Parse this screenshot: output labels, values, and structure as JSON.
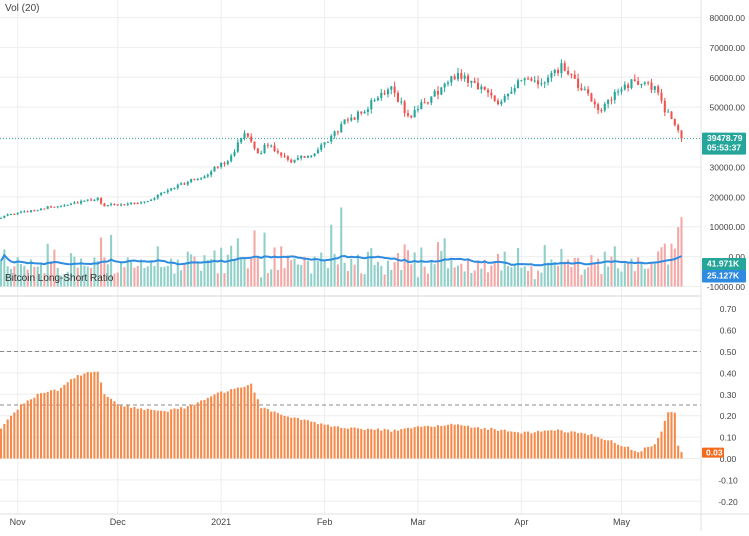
{
  "panes": {
    "price": {
      "volume_label": "Vol (20)",
      "y_ticks": [
        "80000.00",
        "70000.00",
        "60000.00",
        "50000.00",
        "40000.00",
        "30000.00",
        "20000.00",
        "10000.00",
        "0.00",
        "-10000.00"
      ],
      "last_price": "39478.79",
      "countdown": "05:53:37",
      "volume_value": "41.971K",
      "volume_ma_value": "25.127K"
    },
    "ratio": {
      "title": "Bitcoin Long-Short Ratio",
      "y_ticks": [
        "0.70",
        "0.60",
        "0.50",
        "0.40",
        "0.30",
        "0.20",
        "0.10",
        "0.00",
        "-0.10",
        "-0.20"
      ],
      "last_value": "0.03"
    }
  },
  "x_axis": {
    "labels": [
      "Nov",
      "Dec",
      "2021",
      "Feb",
      "Mar",
      "Apr",
      "May"
    ]
  },
  "colors": {
    "up": "#26a69a",
    "down": "#ef5350",
    "vol_up": "#8fd0c8",
    "vol_down": "#f4a8a6",
    "vol_ma": "#2f8be0",
    "ratio_bar": "#f68a4a",
    "axis_text": "#444444",
    "grid": "#eeeeee"
  },
  "chart_data": [
    {
      "type": "candlestick",
      "title": "",
      "x_range": [
        "2020-10-27",
        "2021-05-19"
      ],
      "ylim": [
        -10000,
        85000
      ],
      "price_anchors": [
        [
          "2020-10-27",
          13300
        ],
        [
          "2020-11-05",
          15500
        ],
        [
          "2020-11-17",
          17800
        ],
        [
          "2020-11-25",
          19200
        ],
        [
          "2020-11-27",
          17000
        ],
        [
          "2020-12-10",
          18500
        ],
        [
          "2020-12-17",
          23000
        ],
        [
          "2020-12-27",
          27000
        ],
        [
          "2021-01-03",
          32500
        ],
        [
          "2021-01-08",
          40800
        ],
        [
          "2021-01-12",
          34500
        ],
        [
          "2021-01-15",
          37500
        ],
        [
          "2021-01-22",
          32000
        ],
        [
          "2021-01-29",
          34200
        ],
        [
          "2021-02-08",
          46000
        ],
        [
          "2021-02-12",
          48000
        ],
        [
          "2021-02-21",
          57500
        ],
        [
          "2021-02-26",
          46500
        ],
        [
          "2021-03-01",
          49500
        ],
        [
          "2021-03-13",
          61200
        ],
        [
          "2021-03-18",
          58000
        ],
        [
          "2021-03-25",
          52000
        ],
        [
          "2021-04-01",
          58800
        ],
        [
          "2021-04-08",
          58000
        ],
        [
          "2021-04-13",
          63500
        ],
        [
          "2021-04-18",
          57000
        ],
        [
          "2021-04-25",
          49000
        ],
        [
          "2021-05-02",
          57500
        ],
        [
          "2021-05-08",
          58800
        ],
        [
          "2021-05-11",
          56000
        ],
        [
          "2021-05-14",
          49000
        ],
        [
          "2021-05-18",
          43000
        ],
        [
          "2021-05-19",
          39478.79
        ]
      ],
      "last_price": 39478.79
    },
    {
      "type": "bar",
      "series": [
        {
          "name": "Vol (20)",
          "last": 41971,
          "ma_last": 25127
        }
      ],
      "x_range": [
        "2020-10-27",
        "2021-05-19"
      ]
    },
    {
      "type": "bar",
      "title": "Bitcoin Long-Short Ratio",
      "x_range": [
        "2020-10-27",
        "2021-05-19"
      ],
      "ylim": [
        -0.25,
        0.75
      ],
      "dashed_levels": [
        0.5,
        0.25
      ],
      "ratio_anchors": [
        [
          "2020-10-27",
          0.14
        ],
        [
          "2020-11-02",
          0.25
        ],
        [
          "2020-11-08",
          0.31
        ],
        [
          "2020-11-13",
          0.32
        ],
        [
          "2020-11-18",
          0.38
        ],
        [
          "2020-11-22",
          0.4
        ],
        [
          "2020-11-25",
          0.41
        ],
        [
          "2020-11-27",
          0.3
        ],
        [
          "2020-12-01",
          0.25
        ],
        [
          "2020-12-10",
          0.23
        ],
        [
          "2020-12-15",
          0.22
        ],
        [
          "2020-12-22",
          0.24
        ],
        [
          "2020-12-30",
          0.3
        ],
        [
          "2021-01-07",
          0.33
        ],
        [
          "2021-01-10",
          0.35
        ],
        [
          "2021-01-13",
          0.24
        ],
        [
          "2021-01-20",
          0.2
        ],
        [
          "2021-01-28",
          0.17
        ],
        [
          "2021-02-04",
          0.15
        ],
        [
          "2021-02-12",
          0.14
        ],
        [
          "2021-02-22",
          0.13
        ],
        [
          "2021-03-03",
          0.15
        ],
        [
          "2021-03-10",
          0.16
        ],
        [
          "2021-03-22",
          0.14
        ],
        [
          "2021-04-01",
          0.12
        ],
        [
          "2021-04-12",
          0.13
        ],
        [
          "2021-04-22",
          0.11
        ],
        [
          "2021-04-30",
          0.07
        ],
        [
          "2021-05-06",
          0.03
        ],
        [
          "2021-05-11",
          0.07
        ],
        [
          "2021-05-13",
          0.12
        ],
        [
          "2021-05-15",
          0.22
        ],
        [
          "2021-05-17",
          0.22
        ],
        [
          "2021-05-18",
          0.06
        ],
        [
          "2021-05-19",
          0.03
        ]
      ],
      "last_value": 0.03
    }
  ]
}
